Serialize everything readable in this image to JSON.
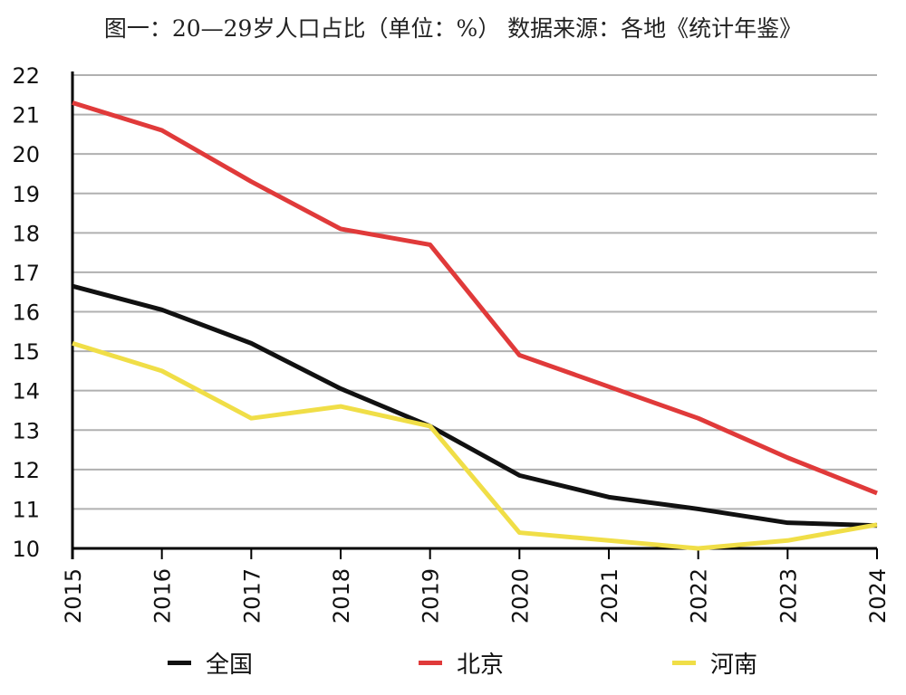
{
  "title": "图一：20—29岁人口占比（单位：%） 数据来源：各地《统计年鉴》",
  "colors": {
    "grid": "#b0b0b0",
    "axis": "#000000",
    "text": "#111111"
  },
  "chart_data": {
    "type": "line",
    "title": "图一：20—29岁人口占比（单位：%） 数据来源：各地《统计年鉴》",
    "x": [
      "2015",
      "2016",
      "2017",
      "2018",
      "2019",
      "2020",
      "2021",
      "2022",
      "2023",
      "2024"
    ],
    "ylim": [
      10,
      22
    ],
    "yticks": [
      "10",
      "11",
      "12",
      "13",
      "14",
      "15",
      "16",
      "17",
      "18",
      "19",
      "20",
      "21",
      "22"
    ],
    "grid": true,
    "legend_position": "bottom",
    "series": [
      {
        "name": "全国",
        "color": "#111111",
        "values": [
          16.65,
          16.05,
          15.2,
          14.05,
          13.1,
          11.85,
          11.3,
          11.0,
          10.65,
          10.58
        ]
      },
      {
        "name": "北京",
        "color": "#e03a3a",
        "values": [
          21.3,
          20.6,
          19.3,
          18.1,
          17.7,
          14.9,
          14.1,
          13.3,
          12.3,
          11.4
        ]
      },
      {
        "name": "河南",
        "color": "#f0de47",
        "values": [
          15.2,
          14.5,
          13.3,
          13.6,
          13.1,
          10.4,
          10.2,
          10.0,
          10.2,
          10.6
        ]
      }
    ]
  }
}
